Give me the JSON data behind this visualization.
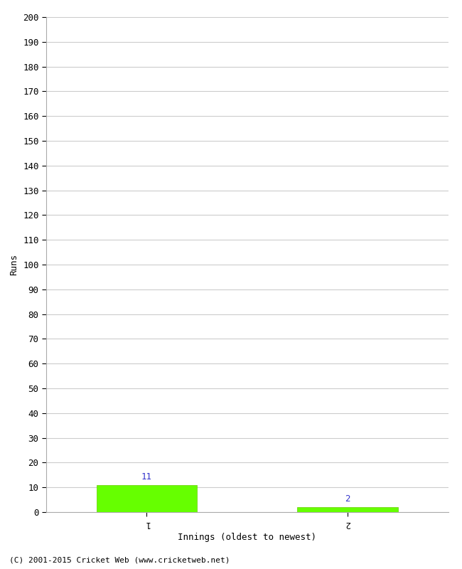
{
  "xlabel": "Innings (oldest to newest)",
  "ylabel": "Runs",
  "categories": [
    1,
    2
  ],
  "values": [
    11,
    2
  ],
  "bar_color": "#66ff00",
  "bar_edge_color": "#66cc00",
  "value_labels": [
    11,
    2
  ],
  "value_label_color": "#3333cc",
  "ylim": [
    0,
    200
  ],
  "ytick_step": 10,
  "background_color": "#ffffff",
  "grid_color": "#cccccc",
  "footer": "(C) 2001-2015 Cricket Web (www.cricketweb.net)"
}
